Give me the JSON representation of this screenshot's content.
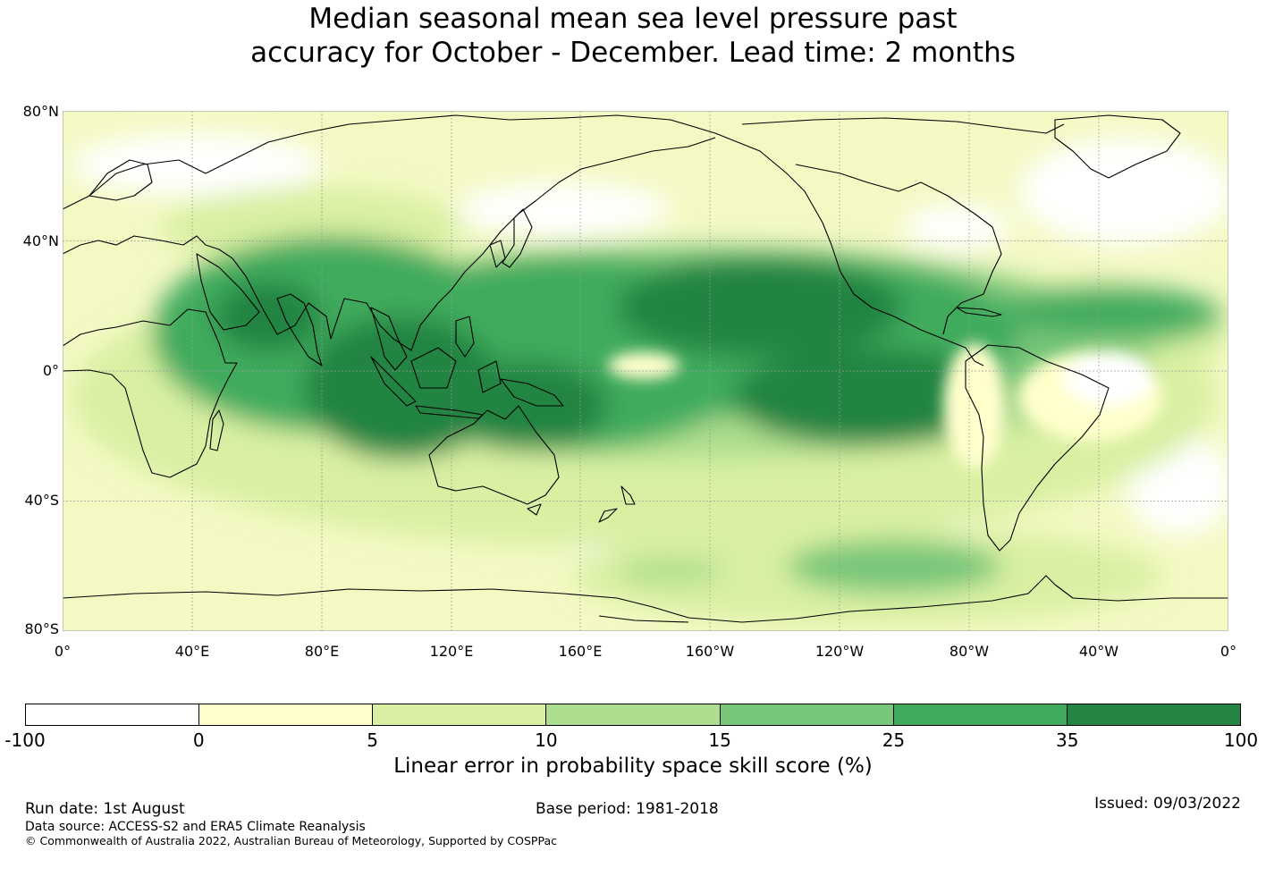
{
  "title": {
    "line1": "Median seasonal mean sea level pressure past",
    "line2": "accuracy for October - December. Lead time: 2 months"
  },
  "map": {
    "lat_labels": [
      "80°N",
      "40°N",
      "0°",
      "40°S",
      "80°S"
    ],
    "lon_labels": [
      "0°",
      "40°E",
      "80°E",
      "120°E",
      "160°E",
      "160°W",
      "120°W",
      "80°W",
      "40°W",
      "0°"
    ],
    "lat_range": [
      -80,
      80
    ],
    "lon_range": [
      0,
      360
    ],
    "grid": true,
    "field_description_colors": {
      "land_outline": "#000000",
      "grid_line": "#999999"
    }
  },
  "colorbar": {
    "ticks": [
      "-100",
      "0",
      "5",
      "10",
      "15",
      "25",
      "35",
      "100"
    ],
    "colors": [
      "#ffffff",
      "#ffffcc",
      "#d9f0a3",
      "#addd8e",
      "#78c679",
      "#41ab5d",
      "#238443"
    ],
    "label": "Linear error in probability space skill score (%)"
  },
  "footer": {
    "run_date": "Run date: 1st August",
    "base_period": "Base period: 1981-2018",
    "issued": "Issued: 09/03/2022",
    "data_source": "Data source: ACCESS-S2 and ERA5 Climate Reanalysis",
    "copyright": "© Commonwealth of Australia 2022, Australian Bureau of Meteorology, Supported by COSPPac"
  }
}
